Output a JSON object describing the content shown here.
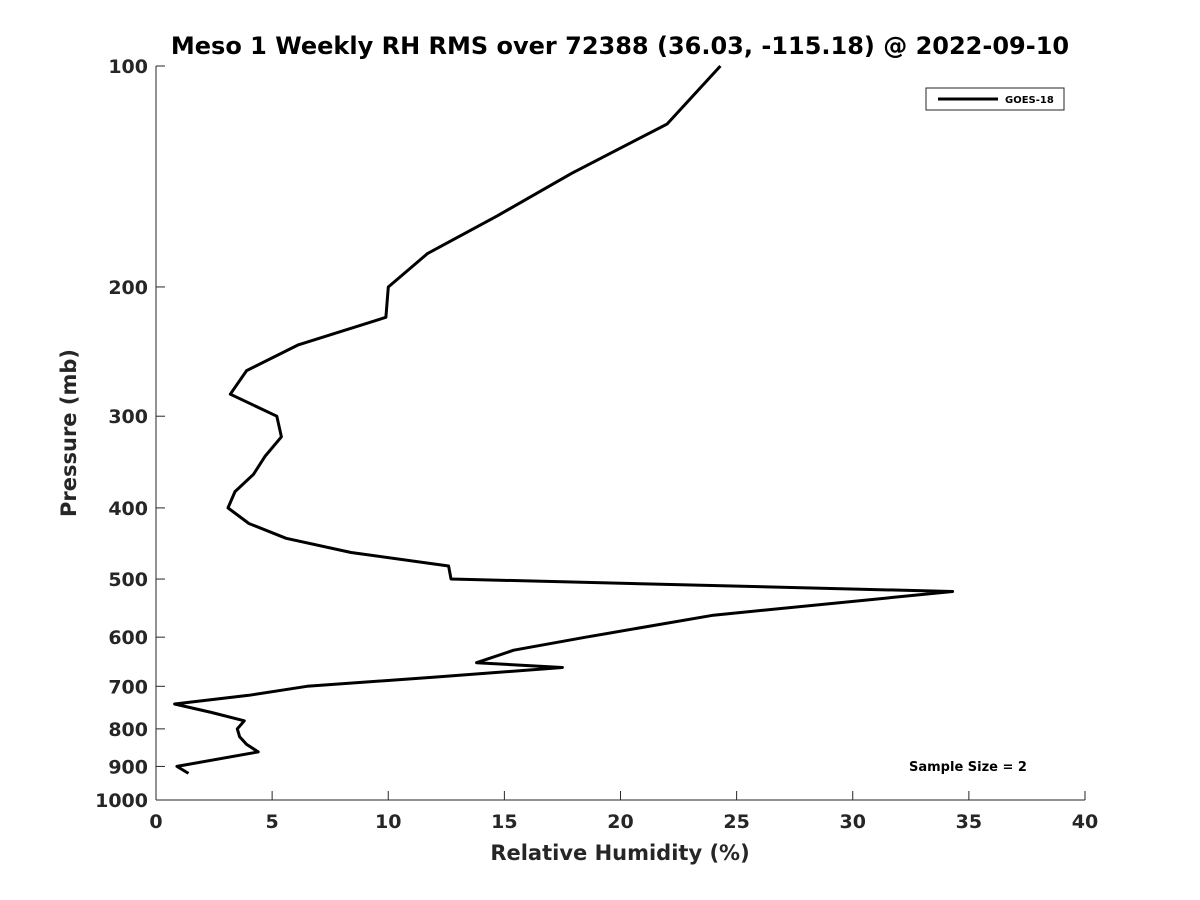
{
  "chart_data": {
    "type": "line",
    "title": "Meso 1 Weekly RH RMS over 72388 (36.03, -115.18) @ 2022-09-10",
    "xlabel": "Relative Humidity (%)",
    "ylabel": "Pressure (mb)",
    "xlim": [
      0,
      40
    ],
    "ylim": [
      100,
      1000
    ],
    "yscale": "log",
    "y_reversed": true,
    "grid": false,
    "legend_position": "top-right",
    "xticks": [
      0,
      5,
      10,
      15,
      20,
      25,
      30,
      35,
      40
    ],
    "xtick_labels": [
      "0",
      "5",
      "10",
      "15",
      "20",
      "25",
      "30",
      "35",
      "40"
    ],
    "yticks": [
      100,
      200,
      300,
      400,
      500,
      600,
      700,
      800,
      900,
      1000
    ],
    "ytick_labels": [
      "100",
      "200",
      "300",
      "400",
      "500",
      "600",
      "700",
      "800",
      "900",
      "1000"
    ],
    "series": [
      {
        "name": "GOES-18",
        "color": "#000000",
        "x": [
          24.3,
          22.0,
          17.9,
          14.7,
          11.7,
          10.0,
          9.9,
          6.1,
          3.9,
          3.2,
          5.2,
          5.4,
          4.7,
          4.2,
          3.4,
          3.1,
          4.0,
          5.6,
          8.4,
          12.6,
          12.7,
          34.3,
          24.0,
          18.5,
          15.4,
          13.8,
          17.5,
          12.0,
          6.5,
          4.0,
          0.8,
          2.4,
          3.8,
          3.5,
          3.6,
          3.9,
          4.4,
          0.9,
          1.4
        ],
        "y": [
          100,
          120,
          140,
          160,
          180,
          200,
          220,
          240,
          260,
          280,
          300,
          320,
          340,
          360,
          380,
          400,
          420,
          440,
          460,
          480,
          500,
          520,
          560,
          600,
          625,
          650,
          660,
          680,
          700,
          720,
          740,
          760,
          780,
          800,
          820,
          840,
          860,
          900,
          920
        ]
      }
    ],
    "legend": [
      "GOES-18"
    ],
    "annotation": "Sample Size = 2"
  }
}
